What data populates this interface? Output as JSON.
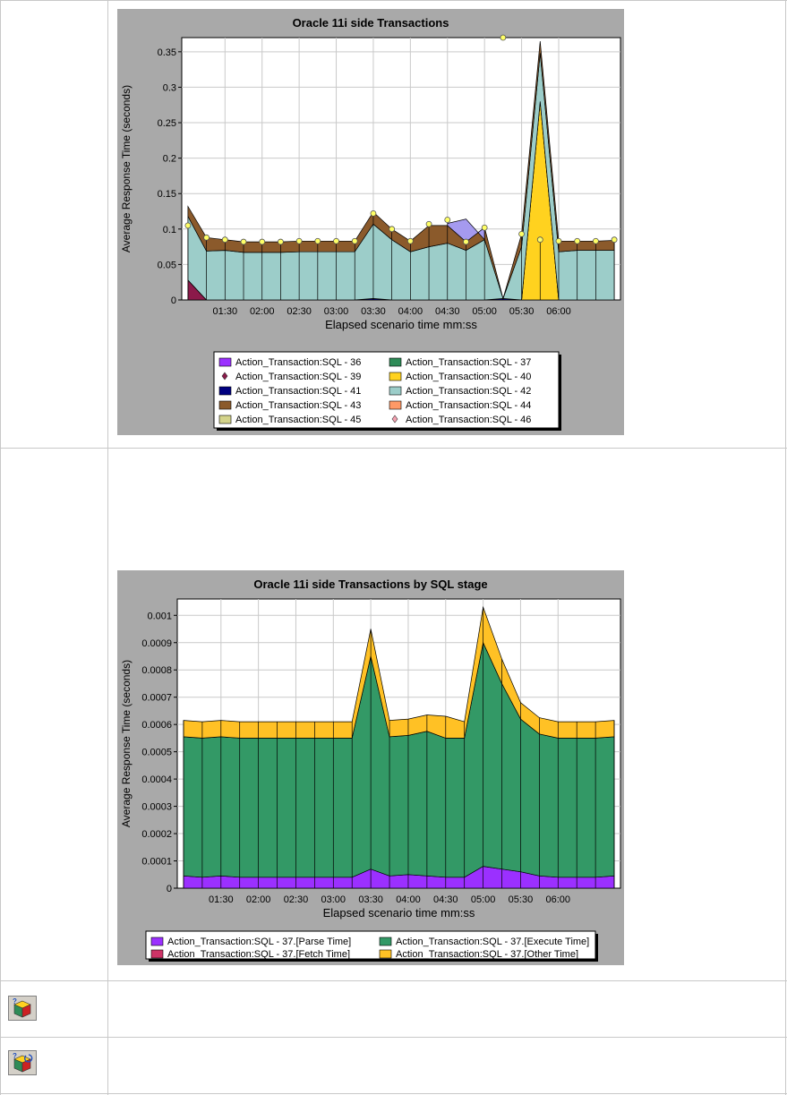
{
  "colors": {
    "panel_bg": "#a9a9a9",
    "plot_bg": "#ffffff",
    "grid": "#c9c9c9",
    "point_marker": "#ffff66",
    "border_gray": "#c8c8c8"
  },
  "icons": [
    "cube-help-icon",
    "cube-help-refresh-icon"
  ],
  "chart_data": [
    {
      "type": "area",
      "stacked": true,
      "title": "Oracle 11i side Transactions",
      "xlabel": "Elapsed scenario time mm:ss",
      "ylabel": "Average Response Time (seconds)",
      "xlim": [
        55,
        410
      ],
      "ylim": [
        0,
        0.37
      ],
      "x": [
        60,
        75,
        90,
        105,
        120,
        135,
        150,
        165,
        180,
        195,
        210,
        225,
        240,
        255,
        270,
        285,
        300,
        315,
        330,
        345,
        360,
        375,
        390,
        405
      ],
      "x_tick_values": [
        90,
        120,
        150,
        180,
        210,
        240,
        270,
        300,
        330,
        360
      ],
      "x_tick_labels": [
        "01:30",
        "02:00",
        "02:30",
        "03:00",
        "03:30",
        "04:00",
        "04:30",
        "05:00",
        "05:30",
        "06:00"
      ],
      "y_tick_values": [
        0,
        0.05,
        0.1,
        0.15,
        0.2,
        0.25,
        0.3,
        0.35
      ],
      "y_tick_labels": [
        "0",
        "0.05",
        "0.1",
        "0.15",
        "0.2",
        "0.25",
        "0.3",
        "0.35"
      ],
      "legend_position": "bottom",
      "legend_columns": 2,
      "series": [
        {
          "name": "Action_Transaction:SQL - 36",
          "color": "#9b30ff",
          "marker": "square",
          "values": [
            0,
            0,
            0,
            0,
            0,
            0,
            0,
            0,
            0,
            0,
            0,
            0,
            0,
            0,
            0,
            0,
            0,
            0,
            0,
            0,
            0,
            0,
            0,
            0
          ]
        },
        {
          "name": "Action_Transaction:SQL - 37",
          "color": "#2e8b57",
          "marker": "square",
          "values": [
            0,
            0,
            0,
            0,
            0,
            0,
            0,
            0,
            0,
            0,
            0,
            0,
            0,
            0,
            0,
            0,
            0,
            0,
            0,
            0,
            0,
            0,
            0,
            0
          ]
        },
        {
          "name": "Action_Transaction:SQL - 39",
          "color": "#8b1a4a",
          "marker": "diamond",
          "values": [
            0.028,
            0,
            0,
            0,
            0,
            0,
            0,
            0,
            0,
            0,
            0,
            0,
            0,
            0,
            0,
            0,
            0,
            0,
            0,
            0,
            0,
            0,
            0,
            0
          ]
        },
        {
          "name": "Action_Transaction:SQL - 40",
          "color": "#ffd21f",
          "marker": "square",
          "values": [
            0,
            0,
            0,
            0,
            0,
            0,
            0,
            0,
            0,
            0,
            0,
            0,
            0,
            0,
            0,
            0,
            0,
            0,
            0,
            0.28,
            0,
            0,
            0,
            0
          ]
        },
        {
          "name": "Action_Transaction:SQL - 41",
          "color": "#000080",
          "marker": "square",
          "values": [
            0,
            0,
            0,
            0,
            0,
            0,
            0,
            0,
            0,
            0,
            0.002,
            0,
            0,
            0,
            0,
            0,
            0,
            0.002,
            0,
            0,
            0,
            0,
            0,
            0
          ]
        },
        {
          "name": "Action_Transaction:SQL - 42",
          "color": "#9ccdc9",
          "marker": "square",
          "values": [
            0.09,
            0.069,
            0.07,
            0.067,
            0.067,
            0.067,
            0.068,
            0.068,
            0.068,
            0.068,
            0.105,
            0.085,
            0.068,
            0.075,
            0.08,
            0.07,
            0.085,
            0.0,
            0.075,
            0.068,
            0.068,
            0.07,
            0.07,
            0.07
          ]
        },
        {
          "name": "Action_Transaction:SQL - 43",
          "color": "#8b5a2b",
          "marker": "square",
          "values": [
            0.014,
            0.019,
            0.015,
            0.015,
            0.015,
            0.015,
            0.015,
            0.015,
            0.015,
            0.015,
            0.017,
            0.015,
            0.015,
            0.03,
            0.025,
            0.012,
            0.017,
            0.0,
            0.018,
            0.017,
            0.015,
            0.013,
            0.013,
            0.014
          ]
        },
        {
          "name": "Action_Transaction:SQL - 44",
          "color": "#ff9966",
          "marker": "square",
          "values": [
            0,
            0,
            0,
            0,
            0,
            0,
            0,
            0,
            0,
            0,
            0,
            0,
            0,
            0,
            0,
            0,
            0,
            0,
            0,
            0,
            0,
            0,
            0,
            0
          ]
        },
        {
          "name": "Action_Transaction:SQL - 45",
          "color": "#d4d48b",
          "marker": "square",
          "values": [
            0,
            0,
            0,
            0,
            0,
            0,
            0,
            0,
            0,
            0,
            0,
            0,
            0,
            0,
            0,
            0,
            0,
            0,
            0,
            0,
            0,
            0,
            0,
            0
          ]
        },
        {
          "name": "Action_Transaction:SQL - 46",
          "color": "#f4a0b0",
          "marker": "diamond",
          "values": [
            0,
            0,
            0,
            0,
            0,
            0,
            0,
            0,
            0,
            0,
            0,
            0,
            0,
            0,
            0,
            0,
            0,
            0,
            0,
            0,
            0,
            0,
            0,
            0
          ]
        }
      ],
      "extra_area": {
        "series": "Action_Transaction:SQL - 36",
        "color": "#a59aef",
        "x": [
          270,
          285,
          300
        ],
        "top": [
          0.108,
          0.114,
          0.085
        ]
      },
      "point_markers": [
        0.105,
        0.088,
        0.085,
        0.082,
        0.082,
        0.082,
        0.083,
        0.083,
        0.083,
        0.083,
        0.122,
        0.1,
        0.083,
        0.107,
        0.113,
        0.082,
        0.102,
        0.37,
        0.093,
        0.085,
        0.083,
        0.083,
        0.083,
        0.085
      ]
    },
    {
      "type": "area",
      "stacked": true,
      "title": "Oracle 11i side Transactions by SQL stage",
      "xlabel": "Elapsed scenario time mm:ss",
      "ylabel": "Average Response Time (seconds)",
      "xlim": [
        55,
        410
      ],
      "ylim": [
        0,
        0.00106
      ],
      "x": [
        60,
        75,
        90,
        105,
        120,
        135,
        150,
        165,
        180,
        195,
        210,
        225,
        240,
        255,
        270,
        285,
        300,
        315,
        330,
        345,
        360,
        375,
        390,
        405
      ],
      "x_tick_values": [
        90,
        120,
        150,
        180,
        210,
        240,
        270,
        300,
        330,
        360
      ],
      "x_tick_labels": [
        "01:30",
        "02:00",
        "02:30",
        "03:00",
        "03:30",
        "04:00",
        "04:30",
        "05:00",
        "05:30",
        "06:00"
      ],
      "y_tick_values": [
        0,
        0.0001,
        0.0002,
        0.0003,
        0.0004,
        0.0005,
        0.0006,
        0.0007,
        0.0008,
        0.0009,
        0.001
      ],
      "y_tick_labels": [
        "0",
        "0.0001",
        "0.0002",
        "0.0003",
        "0.0004",
        "0.0005",
        "0.0006",
        "0.0007",
        "0.0008",
        "0.0009",
        "0.001"
      ],
      "legend_position": "bottom",
      "legend_columns": 2,
      "series": [
        {
          "name": "Action_Transaction:SQL - 37.[Parse Time]",
          "color": "#9b30ff",
          "marker": "square",
          "values": [
            4.5e-05,
            4e-05,
            4.5e-05,
            4e-05,
            4e-05,
            4e-05,
            4e-05,
            4e-05,
            4e-05,
            4e-05,
            7e-05,
            4.5e-05,
            5e-05,
            4.5e-05,
            4e-05,
            4e-05,
            8e-05,
            7e-05,
            6e-05,
            4.5e-05,
            4e-05,
            4e-05,
            4e-05,
            4.5e-05
          ]
        },
        {
          "name": "Action_Transaction:SQL - 37.[Execute Time]",
          "color": "#339966",
          "marker": "square",
          "values": [
            0.00051,
            0.00051,
            0.00051,
            0.00051,
            0.00051,
            0.00051,
            0.00051,
            0.00051,
            0.00051,
            0.00051,
            0.00078,
            0.00051,
            0.00051,
            0.00053,
            0.00051,
            0.00051,
            0.00082,
            0.00068,
            0.00056,
            0.00052,
            0.00051,
            0.00051,
            0.00051,
            0.00051
          ]
        },
        {
          "name": "Action_Transaction:SQL - 37.[Fetch Time]",
          "color": "#cc3366",
          "marker": "square",
          "values": [
            0,
            0,
            0,
            0,
            0,
            0,
            0,
            0,
            0,
            0,
            0,
            0,
            0,
            0,
            0,
            0,
            0,
            0,
            0,
            0,
            0,
            0,
            0,
            0
          ]
        },
        {
          "name": "Action_Transaction:SQL - 37.[Other Time]",
          "color": "#ffc125",
          "marker": "square",
          "values": [
            6e-05,
            6e-05,
            6e-05,
            6e-05,
            6e-05,
            6e-05,
            6e-05,
            6e-05,
            6e-05,
            6e-05,
            0.0001,
            6e-05,
            6e-05,
            6e-05,
            8e-05,
            6e-05,
            0.00013,
            9e-05,
            6e-05,
            6e-05,
            6e-05,
            6e-05,
            6e-05,
            6e-05
          ]
        }
      ]
    }
  ]
}
